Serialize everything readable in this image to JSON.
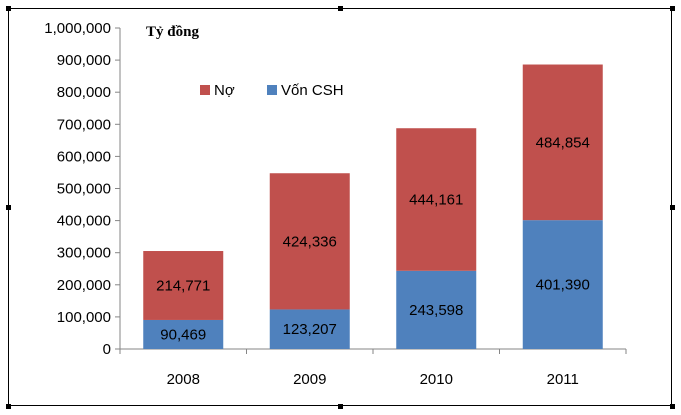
{
  "chart_data": {
    "type": "bar",
    "stacked": true,
    "unit_label": "Tỷ đồng",
    "categories": [
      "2008",
      "2009",
      "2010",
      "2011"
    ],
    "series": [
      {
        "name": "Vốn CSH",
        "color": "#4F81BD",
        "values": [
          90469,
          123207,
          243598,
          401390
        ],
        "labels": [
          "90,469",
          "123,207",
          "243,598",
          "401,390"
        ]
      },
      {
        "name": "Nợ",
        "color": "#C0504D",
        "values": [
          214771,
          424336,
          444161,
          484854
        ],
        "labels": [
          "214,771",
          "424,336",
          "444,161",
          "484,854"
        ]
      }
    ],
    "legend_order": [
      "Nợ",
      "Vốn CSH"
    ],
    "legend_position": "top-left (inside plot)",
    "ylim": [
      0,
      1000000
    ],
    "yticks": [
      0,
      100000,
      200000,
      300000,
      400000,
      500000,
      600000,
      700000,
      800000,
      900000,
      1000000
    ],
    "ytick_labels": [
      "0",
      "100,000",
      "200,000",
      "300,000",
      "400,000",
      "500,000",
      "600,000",
      "700,000",
      "800,000",
      "900,000",
      "1,000,000"
    ],
    "grid": false
  }
}
